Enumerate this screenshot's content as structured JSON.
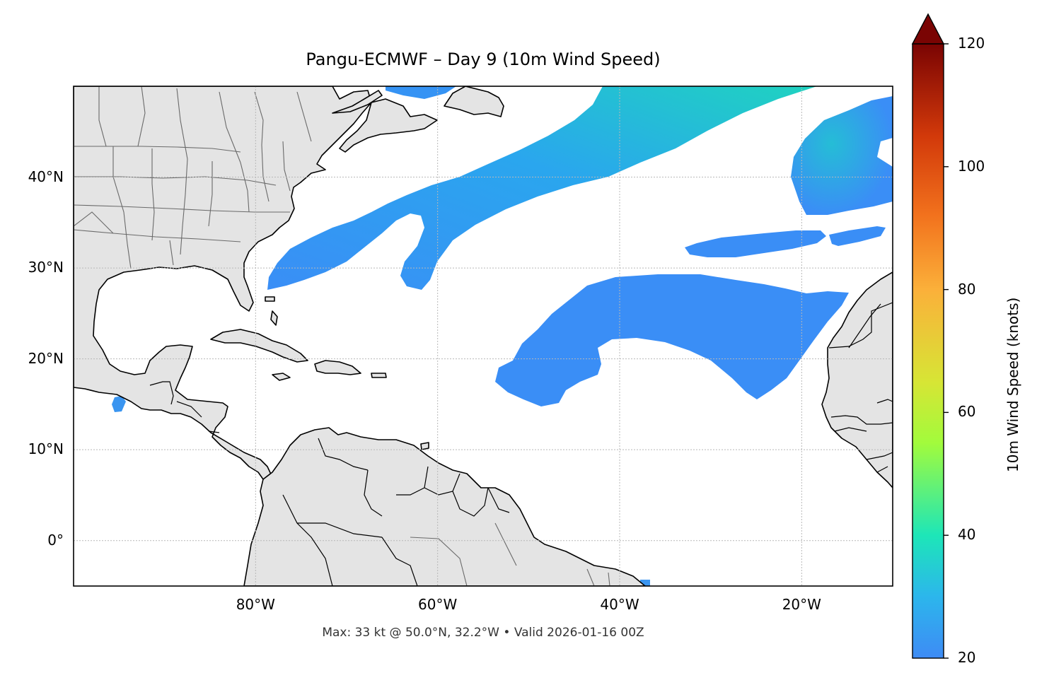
{
  "title": "Pangu-ECMWF – Day 9 (10m Wind Speed)",
  "footer": "Max: 33 kt @ 50.0°N, 32.2°W • Valid 2026-01-16 00Z",
  "map": {
    "extent": {
      "lon": [
        -100,
        -10
      ],
      "lat": [
        -5,
        50
      ]
    },
    "lon_ticks": [
      {
        "value": -80,
        "label": "80°W"
      },
      {
        "value": -60,
        "label": "60°W"
      },
      {
        "value": -40,
        "label": "40°W"
      },
      {
        "value": -20,
        "label": "20°W"
      }
    ],
    "lat_ticks": [
      {
        "value": 0,
        "label": "0°"
      },
      {
        "value": 10,
        "label": "10°N"
      },
      {
        "value": 20,
        "label": "20°N"
      },
      {
        "value": 30,
        "label": "30°N"
      },
      {
        "value": 40,
        "label": "40°N"
      }
    ],
    "land_color": "#e4e4e4",
    "ocean_color": "#ffffff",
    "gridlines": true
  },
  "colorbar": {
    "label": "10m Wind Speed (knots)",
    "range": [
      20,
      120
    ],
    "ticks": [
      {
        "value": 20,
        "label": "20"
      },
      {
        "value": 40,
        "label": "40"
      },
      {
        "value": 60,
        "label": "60"
      },
      {
        "value": 80,
        "label": "80"
      },
      {
        "value": 100,
        "label": "100"
      },
      {
        "value": 120,
        "label": "120"
      }
    ],
    "extend": "max",
    "colormap": "turbo"
  },
  "wind_field": {
    "threshold_kt": 20,
    "max": {
      "value_kt": 33,
      "lat": 50.0,
      "lon": -32.2
    },
    "colors": {
      "low": "#3a90f6",
      "mid": "#2aa8ee",
      "high": "#1ed8b8"
    }
  }
}
